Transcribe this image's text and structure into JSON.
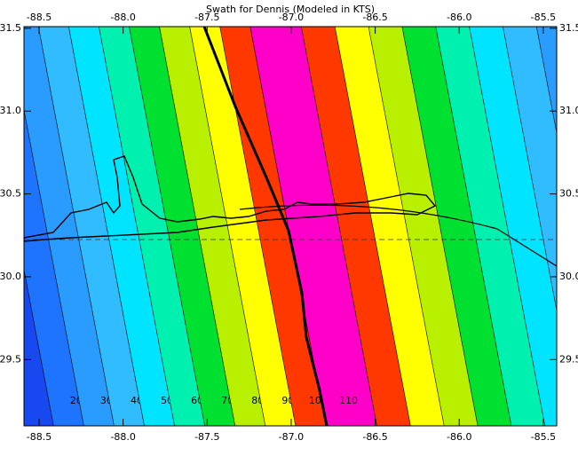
{
  "chart_data": {
    "type": "contour",
    "title": "Swath for Dennis (Modeled in KTS)",
    "xlim": [
      -88.59,
      -85.42
    ],
    "ylim": [
      29.1,
      31.51
    ],
    "xticks": [
      -88.5,
      {
        "value": -88,
        "label": "-88.0"
      },
      -87.5,
      {
        "value": -87,
        "label": "-87.0"
      },
      -86.5,
      {
        "value": -86,
        "label": "-86.0"
      },
      -85.5
    ],
    "yticks": [
      29.5,
      {
        "value": 30,
        "label": "30.0"
      },
      30.5,
      {
        "value": 31,
        "label": "31.0"
      },
      31.5
    ],
    "levels": [
      20,
      30,
      40,
      50,
      60,
      70,
      80,
      90,
      100,
      110
    ],
    "base_color": "#1848f0",
    "colors": [
      "#1f74ff",
      "#2a9cff",
      "#30bcff",
      "#00e4ff",
      "#00f0b0",
      "#00e030",
      "#b8f000",
      "#ffff00",
      "#ff3800",
      "#ff00c8"
    ]
  }
}
